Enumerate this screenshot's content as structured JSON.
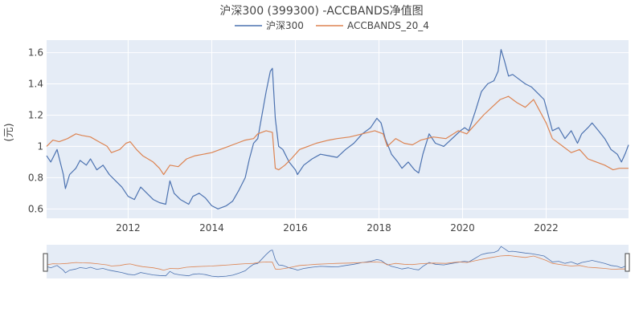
{
  "chart_data": {
    "type": "line",
    "title": "沪深300 (399300) -ACCBANDS净值图",
    "ylabel": "(元)",
    "xlim": [
      2010.05,
      2023.97
    ],
    "ylim": [
      0.54,
      1.68
    ],
    "xticks": [
      2012,
      2014,
      2016,
      2018,
      2020,
      2022
    ],
    "xtick_labels": [
      "2012",
      "2014",
      "2016",
      "2018",
      "2020",
      "2022"
    ],
    "yticks": [
      0.6,
      0.8,
      1.0,
      1.2,
      1.4,
      1.6
    ],
    "ytick_labels": [
      "0.6",
      "0.8",
      "1",
      "1.2",
      "1.4",
      "1.6"
    ],
    "grid": true,
    "legend": "top-center",
    "range_slider": true,
    "series": [
      {
        "name": "沪深300",
        "color": "#4c72b0",
        "x": [
          2010.05,
          2010.15,
          2010.3,
          2010.45,
          2010.5,
          2010.6,
          2010.75,
          2010.85,
          2011.0,
          2011.1,
          2011.25,
          2011.4,
          2011.55,
          2011.7,
          2011.85,
          2012.0,
          2012.15,
          2012.3,
          2012.45,
          2012.6,
          2012.75,
          2012.9,
          2013.0,
          2013.1,
          2013.25,
          2013.45,
          2013.55,
          2013.7,
          2013.85,
          2014.0,
          2014.15,
          2014.35,
          2014.5,
          2014.65,
          2014.8,
          2014.9,
          2015.0,
          2015.1,
          2015.2,
          2015.3,
          2015.4,
          2015.45,
          2015.52,
          2015.6,
          2015.7,
          2015.85,
          2016.0,
          2016.05,
          2016.2,
          2016.4,
          2016.6,
          2016.8,
          2017.0,
          2017.2,
          2017.4,
          2017.6,
          2017.8,
          2017.95,
          2018.05,
          2018.15,
          2018.3,
          2018.45,
          2018.55,
          2018.7,
          2018.85,
          2018.95,
          2019.05,
          2019.2,
          2019.35,
          2019.55,
          2019.75,
          2019.95,
          2020.05,
          2020.15,
          2020.3,
          2020.45,
          2020.6,
          2020.75,
          2020.85,
          2020.92,
          2021.0,
          2021.1,
          2021.2,
          2021.35,
          2021.5,
          2021.65,
          2021.8,
          2021.95,
          2022.05,
          2022.15,
          2022.3,
          2022.45,
          2022.6,
          2022.75,
          2022.85,
          2023.0,
          2023.1,
          2023.25,
          2023.4,
          2023.55,
          2023.7,
          2023.8,
          2023.9,
          2023.97
        ],
        "y": [
          0.94,
          0.9,
          0.98,
          0.82,
          0.73,
          0.82,
          0.86,
          0.91,
          0.88,
          0.92,
          0.85,
          0.88,
          0.82,
          0.78,
          0.74,
          0.68,
          0.66,
          0.74,
          0.7,
          0.66,
          0.64,
          0.63,
          0.78,
          0.7,
          0.66,
          0.63,
          0.68,
          0.7,
          0.67,
          0.62,
          0.6,
          0.62,
          0.65,
          0.72,
          0.8,
          0.92,
          1.02,
          1.05,
          1.2,
          1.35,
          1.48,
          1.5,
          1.18,
          1.0,
          0.98,
          0.9,
          0.85,
          0.82,
          0.88,
          0.92,
          0.95,
          0.94,
          0.93,
          0.98,
          1.02,
          1.08,
          1.12,
          1.18,
          1.15,
          1.05,
          0.95,
          0.9,
          0.86,
          0.9,
          0.85,
          0.83,
          0.95,
          1.08,
          1.02,
          1.0,
          1.05,
          1.1,
          1.12,
          1.1,
          1.22,
          1.35,
          1.4,
          1.42,
          1.48,
          1.62,
          1.55,
          1.45,
          1.46,
          1.43,
          1.4,
          1.38,
          1.34,
          1.3,
          1.2,
          1.1,
          1.12,
          1.05,
          1.1,
          1.02,
          1.08,
          1.12,
          1.15,
          1.1,
          1.05,
          0.98,
          0.95,
          0.9,
          0.96,
          1.01
        ]
      },
      {
        "name": "ACCBANDS_20_4",
        "color": "#dd8452",
        "x": [
          2010.05,
          2010.2,
          2010.35,
          2010.55,
          2010.75,
          2010.9,
          2011.1,
          2011.3,
          2011.5,
          2011.6,
          2011.8,
          2011.95,
          2012.05,
          2012.2,
          2012.35,
          2012.6,
          2012.75,
          2012.85,
          2013.0,
          2013.2,
          2013.4,
          2013.6,
          2013.8,
          2014.0,
          2014.2,
          2014.4,
          2014.6,
          2014.8,
          2015.0,
          2015.1,
          2015.3,
          2015.45,
          2015.52,
          2015.6,
          2015.75,
          2015.9,
          2016.1,
          2016.3,
          2016.5,
          2016.8,
          2017.0,
          2017.3,
          2017.6,
          2017.9,
          2018.1,
          2018.2,
          2018.4,
          2018.6,
          2018.8,
          2019.0,
          2019.3,
          2019.6,
          2019.9,
          2020.1,
          2020.3,
          2020.5,
          2020.7,
          2020.9,
          2021.1,
          2021.3,
          2021.5,
          2021.7,
          2021.8,
          2022.0,
          2022.15,
          2022.4,
          2022.6,
          2022.8,
          2023.0,
          2023.2,
          2023.4,
          2023.6,
          2023.75,
          2023.97
        ],
        "y": [
          1.0,
          1.04,
          1.03,
          1.05,
          1.08,
          1.07,
          1.06,
          1.03,
          1.0,
          0.96,
          0.98,
          1.02,
          1.03,
          0.98,
          0.94,
          0.9,
          0.86,
          0.82,
          0.88,
          0.87,
          0.92,
          0.94,
          0.95,
          0.96,
          0.98,
          1.0,
          1.02,
          1.04,
          1.05,
          1.08,
          1.1,
          1.09,
          0.86,
          0.85,
          0.88,
          0.92,
          0.98,
          1.0,
          1.02,
          1.04,
          1.05,
          1.06,
          1.08,
          1.1,
          1.08,
          1.0,
          1.05,
          1.02,
          1.01,
          1.04,
          1.06,
          1.05,
          1.1,
          1.08,
          1.14,
          1.2,
          1.25,
          1.3,
          1.32,
          1.28,
          1.25,
          1.3,
          1.25,
          1.15,
          1.05,
          1.0,
          0.96,
          0.98,
          0.92,
          0.9,
          0.88,
          0.85,
          0.86,
          0.86
        ]
      }
    ]
  }
}
